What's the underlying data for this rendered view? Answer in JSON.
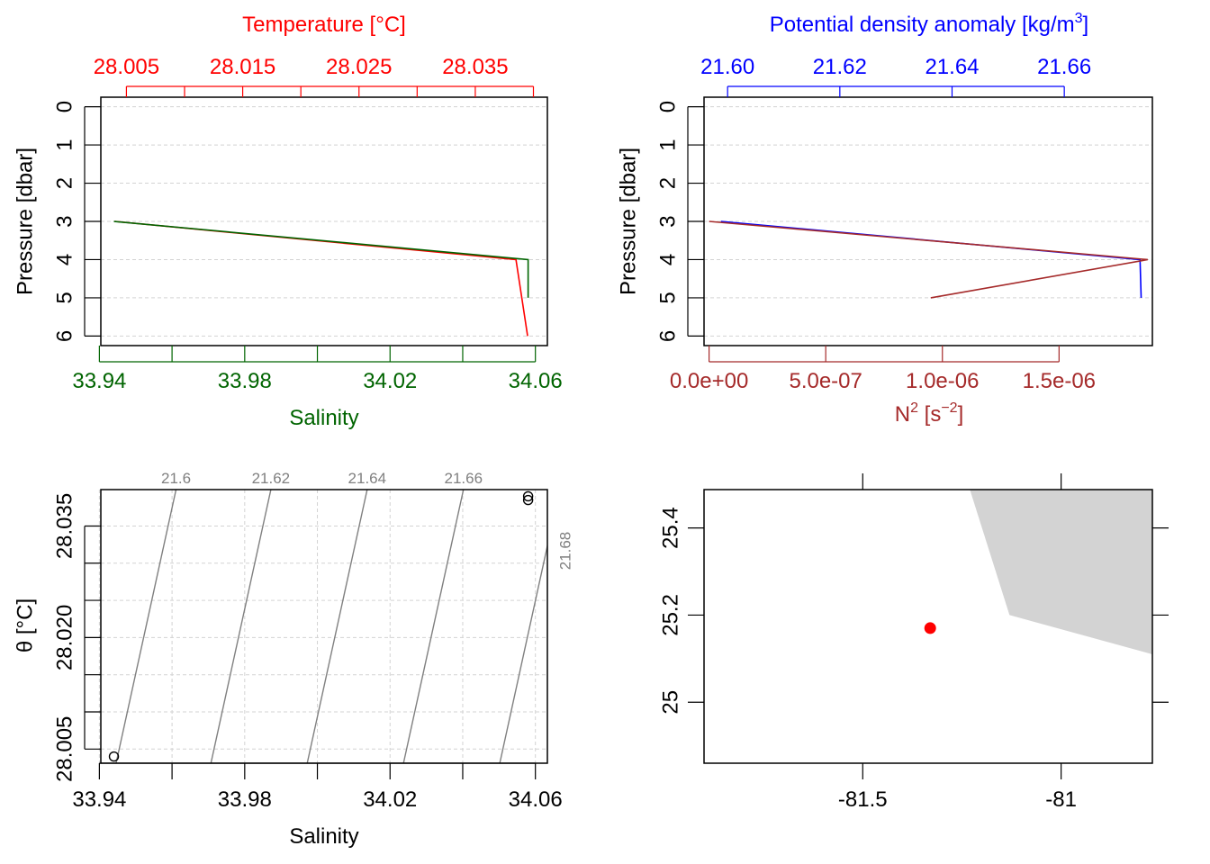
{
  "colors": {
    "temperature": "#ff0000",
    "salinity": "#006400",
    "density": "#0000ff",
    "n2": "#a52a2a",
    "isopycnal": "#808080",
    "grid": "#d3d3d3",
    "land": "#d3d3d3",
    "station": "#ff0000"
  },
  "chart_data": [
    {
      "id": "ts_profile",
      "type": "line",
      "title": "",
      "top_axis": {
        "label": "Temperature [°C]",
        "ticks": [
          "28.005",
          "28.015",
          "28.025",
          "28.035"
        ],
        "range": [
          28.0028,
          28.0412
        ]
      },
      "bottom_axis": {
        "label": "Salinity",
        "ticks": [
          "33.94",
          "33.98",
          "34.02",
          "34.06"
        ],
        "range": [
          33.9404,
          34.0633
        ]
      },
      "left_axis": {
        "label": "Pressure [dbar]",
        "ticks": [
          "0",
          "1",
          "2",
          "3",
          "4",
          "5",
          "6"
        ],
        "range": [
          6.25,
          -0.25
        ]
      },
      "grid": true,
      "series": [
        {
          "name": "Temperature",
          "axis": "top",
          "x": [
            28.004,
            28.0385,
            28.039,
            28.0395
          ],
          "y": [
            3,
            4,
            5,
            6
          ]
        },
        {
          "name": "Salinity",
          "axis": "bottom",
          "x": [
            33.944,
            34.058,
            34.058
          ],
          "y": [
            3,
            4,
            5
          ]
        }
      ]
    },
    {
      "id": "density_n2_profile",
      "type": "line",
      "title": "",
      "top_axis": {
        "label_main": "Potential density anomaly [kg/m",
        "label_sup": "3",
        "label_end": "]",
        "ticks": [
          "21.60",
          "21.62",
          "21.64",
          "21.66"
        ],
        "range": [
          21.5958,
          21.6757
        ]
      },
      "bottom_axis": {
        "label_main": "N",
        "label_sup1": "2",
        "label_mid": " [s",
        "label_sup2": "−2",
        "label_end": "]",
        "ticks": [
          "0.0e+00",
          "5.0e-07",
          "1.0e-06",
          "1.5e-06"
        ],
        "range": [
          -2.16e-08,
          1.9e-06
        ]
      },
      "left_axis": {
        "label": "Pressure [dbar]",
        "ticks": [
          "0",
          "1",
          "2",
          "3",
          "4",
          "5",
          "6"
        ],
        "range": [
          6.25,
          -0.25
        ]
      },
      "grid": true,
      "series": [
        {
          "name": "Potential density anomaly",
          "axis": "top",
          "x": [
            21.5988,
            21.6735,
            21.6737
          ],
          "y": [
            3,
            4,
            5
          ]
        },
        {
          "name": "N2",
          "axis": "bottom",
          "x": [
            0.0,
            1.88e-06,
            9.5e-07
          ],
          "y": [
            3,
            4,
            5
          ]
        }
      ]
    },
    {
      "id": "ts_diagram",
      "type": "scatter",
      "title": "",
      "xlabel": "Salinity",
      "ylabel": "θ [°C]",
      "x_ticks": [
        "33.94",
        "33.98",
        "34.02",
        "34.06"
      ],
      "y_ticks": [
        "28.005",
        "28.020",
        "28.035"
      ],
      "xlim": [
        33.9404,
        34.0633
      ],
      "ylim": [
        28.0031,
        28.0399
      ],
      "grid": true,
      "points": [
        {
          "x": 33.944,
          "y": 28.004
        },
        {
          "x": 34.058,
          "y": 28.0385
        },
        {
          "x": 34.058,
          "y": 28.039
        }
      ],
      "isopycnals": [
        {
          "label": "21.6",
          "x_bottom": 33.9446,
          "x_top": 33.9611
        },
        {
          "label": "21.62",
          "x_bottom": 33.9707,
          "x_top": 33.9872
        },
        {
          "label": "21.64",
          "x_bottom": 33.9972,
          "x_top": 34.0137
        },
        {
          "label": "21.66",
          "x_bottom": 34.0237,
          "x_top": 34.0402
        },
        {
          "label": "21.68",
          "x_bottom": 34.0502,
          "x_top": 34.0667
        }
      ]
    },
    {
      "id": "station_map",
      "type": "scatter",
      "title": "",
      "x_ticks": [
        "-81.5",
        "-81"
      ],
      "y_ticks": [
        "25",
        "25.2",
        "25.4"
      ],
      "xlim": [
        -81.9,
        -80.77
      ],
      "ylim": [
        24.86,
        25.488
      ],
      "station": {
        "lon": -81.33,
        "lat": 25.17
      },
      "land_polygon": [
        {
          "lon": -81.23,
          "lat": 25.488
        },
        {
          "lon": -81.13,
          "lat": 25.2
        },
        {
          "lon": -80.77,
          "lat": 25.11
        },
        {
          "lon": -80.77,
          "lat": 25.488
        }
      ]
    }
  ]
}
